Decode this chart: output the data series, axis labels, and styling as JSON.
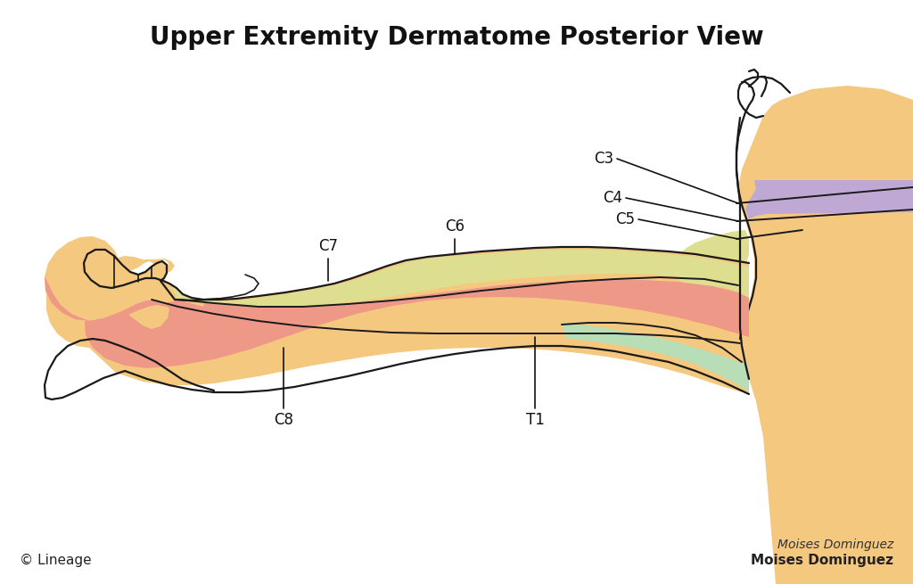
{
  "title": "Upper Extremity Dermatome Posterior View",
  "title_fontsize": 20,
  "title_fontweight": "bold",
  "skin_color": "#F5C880",
  "skin_color_pale": "#F8D8A8",
  "C4_color": "#C8B0D8",
  "C5_color": "#E8E898",
  "C6_color": "#E8E898",
  "C7_color": "#E8E898",
  "C8_color": "#F0A898",
  "T1_color": "#B8DEB8",
  "red_band_color": "#EE9888",
  "green_band_color": "#B8DEB8",
  "yellow_band_color": "#DEDE90",
  "purple_band_color": "#C0A8D5",
  "outline_color": "#1a1a1a",
  "label_color": "#111111",
  "label_fontsize": 12,
  "copyright_text": "© Lineage",
  "author_text": "Moises Dominguez",
  "bg_color": "#ffffff"
}
